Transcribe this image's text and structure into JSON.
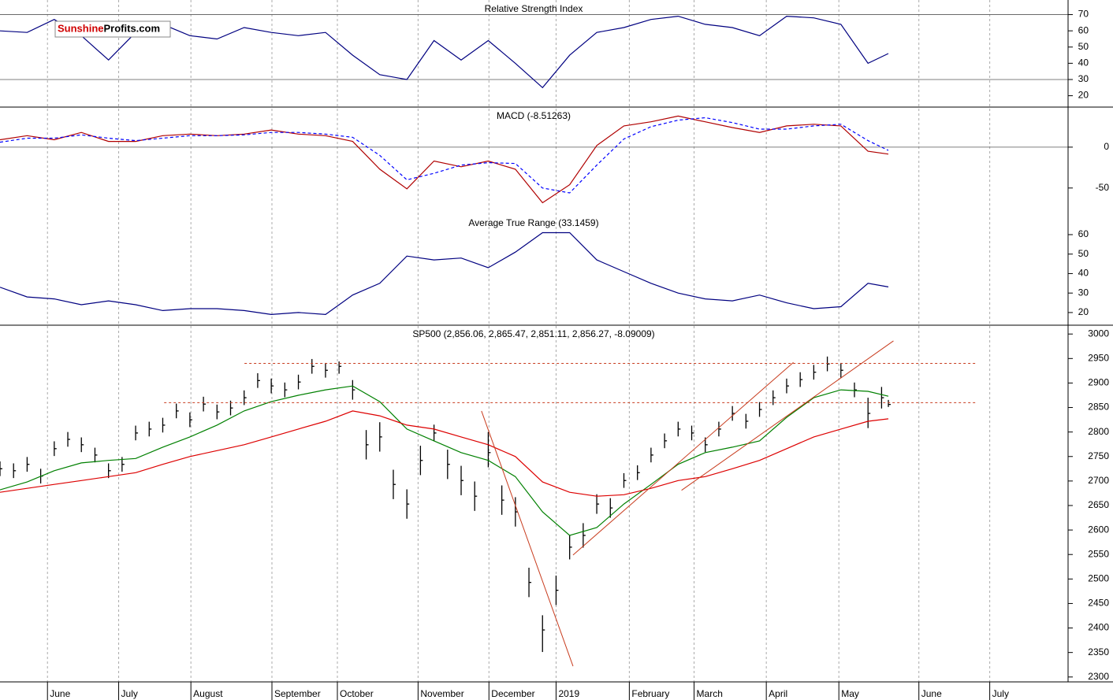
{
  "chart_data": [
    {
      "type": "line",
      "title": "Relative Strength Index",
      "watermark": {
        "first": "Sunshine",
        "second": "Profits.com"
      },
      "ylim": [
        13,
        79
      ],
      "yticks": [
        20,
        30,
        40,
        50,
        60,
        70
      ],
      "hlines": [
        70,
        30
      ],
      "x": [
        0,
        8,
        16,
        24,
        32,
        40,
        48,
        56,
        64,
        72,
        80,
        88,
        96,
        104,
        112,
        120,
        128,
        136,
        144,
        152,
        160,
        168,
        176,
        184,
        192,
        200,
        208,
        216,
        224,
        232,
        240,
        248,
        256,
        262
      ],
      "series": [
        {
          "color": "#000080",
          "values": [
            60,
            59,
            67,
            57,
            42,
            59,
            64,
            57,
            55,
            62,
            59,
            57,
            59,
            45,
            33,
            30,
            54,
            42,
            54,
            40,
            25,
            45,
            59,
            62,
            67,
            69,
            64,
            62,
            57,
            69,
            68,
            64,
            40,
            46
          ]
        }
      ]
    },
    {
      "type": "line",
      "title": "MACD (-8.51263)",
      "ylim": [
        -82,
        49
      ],
      "yticks": [
        0,
        -50
      ],
      "hlines": [
        0
      ],
      "x": [
        0,
        8,
        16,
        24,
        32,
        40,
        48,
        56,
        64,
        72,
        80,
        88,
        96,
        104,
        112,
        120,
        128,
        136,
        144,
        152,
        160,
        168,
        176,
        184,
        192,
        200,
        208,
        216,
        224,
        232,
        240,
        248,
        256,
        262
      ],
      "series": [
        {
          "color": "#b00000",
          "values": [
            9,
            14,
            9,
            18,
            7,
            7,
            14,
            16,
            14,
            16,
            21,
            16,
            14,
            7,
            -27,
            -51,
            -17,
            -24,
            -17,
            -27,
            -68,
            -46,
            2,
            26,
            31,
            38,
            31,
            24,
            18,
            26,
            28,
            26,
            -5,
            -8.51263
          ]
        },
        {
          "color": "#0000ff",
          "style": "dashed",
          "values": [
            6,
            11,
            11,
            15,
            11,
            8,
            11,
            14,
            14,
            15,
            18,
            18,
            16,
            12,
            -10,
            -40,
            -32,
            -22,
            -19,
            -20,
            -50,
            -56,
            -22,
            10,
            25,
            33,
            36,
            30,
            22,
            22,
            26,
            28,
            8,
            -4
          ]
        }
      ]
    },
    {
      "type": "line",
      "title": "Average True Range (33.1459)",
      "ylim": [
        13.5,
        70.5
      ],
      "yticks": [
        20,
        30,
        40,
        50,
        60
      ],
      "x": [
        0,
        8,
        16,
        24,
        32,
        40,
        48,
        56,
        64,
        72,
        80,
        88,
        96,
        104,
        112,
        120,
        128,
        136,
        144,
        152,
        160,
        168,
        176,
        184,
        192,
        200,
        208,
        216,
        224,
        232,
        240,
        248,
        256,
        262
      ],
      "series": [
        {
          "color": "#000080",
          "values": [
            33,
            28,
            27,
            24,
            26,
            24,
            21,
            22,
            22,
            21,
            19,
            20,
            19,
            29,
            35,
            49,
            47,
            48,
            43,
            51,
            61,
            61,
            47,
            41,
            35,
            30,
            27,
            26,
            29,
            25,
            22,
            23,
            35,
            33.1459
          ]
        }
      ]
    },
    {
      "type": "ohlc",
      "title": "SP500 (2,856.06, 2,865.47, 2,851.11, 2,856.27, -8.09009)",
      "ylim": [
        2290,
        3018
      ],
      "yticks": [
        2300,
        2350,
        2400,
        2450,
        2500,
        2550,
        2600,
        2650,
        2700,
        2750,
        2800,
        2850,
        2900,
        2950,
        3000
      ],
      "xlim": [
        0,
        315
      ],
      "xticks": [
        {
          "value": 14,
          "label": "June"
        },
        {
          "value": 35,
          "label": "July"
        },
        {
          "value": 56.3,
          "label": "August"
        },
        {
          "value": 80.2,
          "label": "September"
        },
        {
          "value": 99.5,
          "label": "October"
        },
        {
          "value": 123.3,
          "label": "November"
        },
        {
          "value": 144.2,
          "label": "December"
        },
        {
          "value": 164,
          "label": "2019"
        },
        {
          "value": 185.6,
          "label": "February"
        },
        {
          "value": 204.7,
          "label": "March"
        },
        {
          "value": 226,
          "label": "April"
        },
        {
          "value": 247.4,
          "label": "May"
        },
        {
          "value": 271,
          "label": "June"
        },
        {
          "value": 291.9,
          "label": "July"
        }
      ],
      "bar_color": "#000000",
      "x": [
        0,
        4,
        8,
        12,
        16,
        20,
        24,
        28,
        32,
        36,
        40,
        44,
        48,
        52,
        56,
        60,
        64,
        68,
        72,
        76,
        80,
        84,
        88,
        92,
        96,
        100,
        104,
        108,
        112,
        116,
        120,
        124,
        128,
        132,
        136,
        140,
        144,
        148,
        152,
        156,
        160,
        164,
        168,
        172,
        176,
        180,
        184,
        188,
        192,
        196,
        200,
        204,
        208,
        212,
        216,
        220,
        224,
        228,
        232,
        236,
        240,
        244,
        248,
        252,
        256,
        260,
        262
      ],
      "high": [
        2740,
        2736,
        2749,
        2725,
        2781,
        2800,
        2789,
        2768,
        2736,
        2749,
        2813,
        2821,
        2829,
        2858,
        2840,
        2872,
        2856,
        2864,
        2885,
        2920,
        2909,
        2901,
        2917,
        2949,
        2941,
        2944,
        2906,
        2804,
        2820,
        2723,
        2683,
        2772,
        2815,
        2764,
        2731,
        2699,
        2800,
        2691,
        2667,
        2523,
        2426,
        2507,
        2590,
        2614,
        2673,
        2665,
        2716,
        2732,
        2768,
        2797,
        2821,
        2813,
        2789,
        2821,
        2853,
        2837,
        2861,
        2885,
        2909,
        2922,
        2937,
        2954,
        2941,
        2901,
        2870,
        2892,
        2865.47
      ],
      "low": [
        2710,
        2706,
        2719,
        2695,
        2751,
        2770,
        2759,
        2738,
        2706,
        2719,
        2783,
        2791,
        2799,
        2828,
        2810,
        2842,
        2826,
        2834,
        2855,
        2890,
        2879,
        2871,
        2887,
        2919,
        2911,
        2919,
        2866,
        2744,
        2760,
        2663,
        2623,
        2712,
        2781,
        2704,
        2671,
        2639,
        2728,
        2631,
        2607,
        2463,
        2351,
        2447,
        2540,
        2564,
        2633,
        2625,
        2686,
        2702,
        2738,
        2767,
        2791,
        2783,
        2759,
        2791,
        2823,
        2807,
        2831,
        2855,
        2879,
        2892,
        2907,
        2924,
        2911,
        2871,
        2808,
        2848,
        2851.11
      ],
      "close": [
        2725,
        2721,
        2734,
        2710,
        2766,
        2785,
        2774,
        2753,
        2721,
        2734,
        2798,
        2806,
        2814,
        2843,
        2825,
        2857,
        2841,
        2849,
        2870,
        2905,
        2894,
        2886,
        2902,
        2934,
        2926,
        2934,
        2886,
        2774,
        2790,
        2693,
        2653,
        2742,
        2798,
        2734,
        2701,
        2669,
        2758,
        2661,
        2637,
        2493,
        2396,
        2477,
        2565,
        2589,
        2653,
        2645,
        2701,
        2717,
        2753,
        2782,
        2806,
        2798,
        2774,
        2806,
        2838,
        2822,
        2846,
        2870,
        2894,
        2907,
        2922,
        2939,
        2926,
        2886,
        2838,
        2870,
        2856.27
      ],
      "series": [
        {
          "color": "#008000",
          "x": [
            0,
            8,
            16,
            24,
            32,
            40,
            48,
            56,
            64,
            72,
            80,
            88,
            96,
            104,
            112,
            120,
            128,
            136,
            144,
            152,
            160,
            168,
            176,
            184,
            192,
            200,
            208,
            216,
            224,
            232,
            240,
            248,
            256,
            262
          ],
          "values": [
            2682,
            2698,
            2721,
            2737,
            2742,
            2746,
            2769,
            2790,
            2814,
            2843,
            2862,
            2875,
            2886,
            2894,
            2862,
            2806,
            2782,
            2758,
            2742,
            2709,
            2637,
            2589,
            2605,
            2653,
            2693,
            2734,
            2758,
            2769,
            2782,
            2830,
            2870,
            2886,
            2883,
            2873
          ]
        },
        {
          "color": "#dd0000",
          "x": [
            0,
            8,
            16,
            24,
            32,
            40,
            48,
            56,
            64,
            72,
            80,
            88,
            96,
            104,
            112,
            120,
            128,
            136,
            144,
            152,
            160,
            168,
            176,
            184,
            192,
            200,
            208,
            216,
            224,
            232,
            240,
            248,
            256,
            262
          ],
          "values": [
            2677,
            2685,
            2693,
            2701,
            2709,
            2717,
            2734,
            2750,
            2762,
            2774,
            2790,
            2806,
            2822,
            2843,
            2833,
            2814,
            2806,
            2790,
            2774,
            2750,
            2698,
            2677,
            2669,
            2672,
            2685,
            2701,
            2709,
            2725,
            2742,
            2766,
            2790,
            2806,
            2822,
            2827
          ]
        }
      ],
      "trendline_color": "#c83c1e",
      "trendlines": [
        {
          "style": "dotted",
          "x": [
            72.1,
            287.7
          ],
          "y": [
            2940,
            2940
          ]
        },
        {
          "style": "dotted",
          "x": [
            48.4,
            287.7
          ],
          "y": [
            2860,
            2860
          ]
        },
        {
          "x": [
            142,
            169
          ],
          "y": [
            2843,
            2322
          ]
        },
        {
          "x": [
            169,
            234
          ],
          "y": [
            2549,
            2942
          ]
        },
        {
          "x": [
            201,
            263.5
          ],
          "y": [
            2681,
            2986
          ]
        }
      ]
    }
  ]
}
